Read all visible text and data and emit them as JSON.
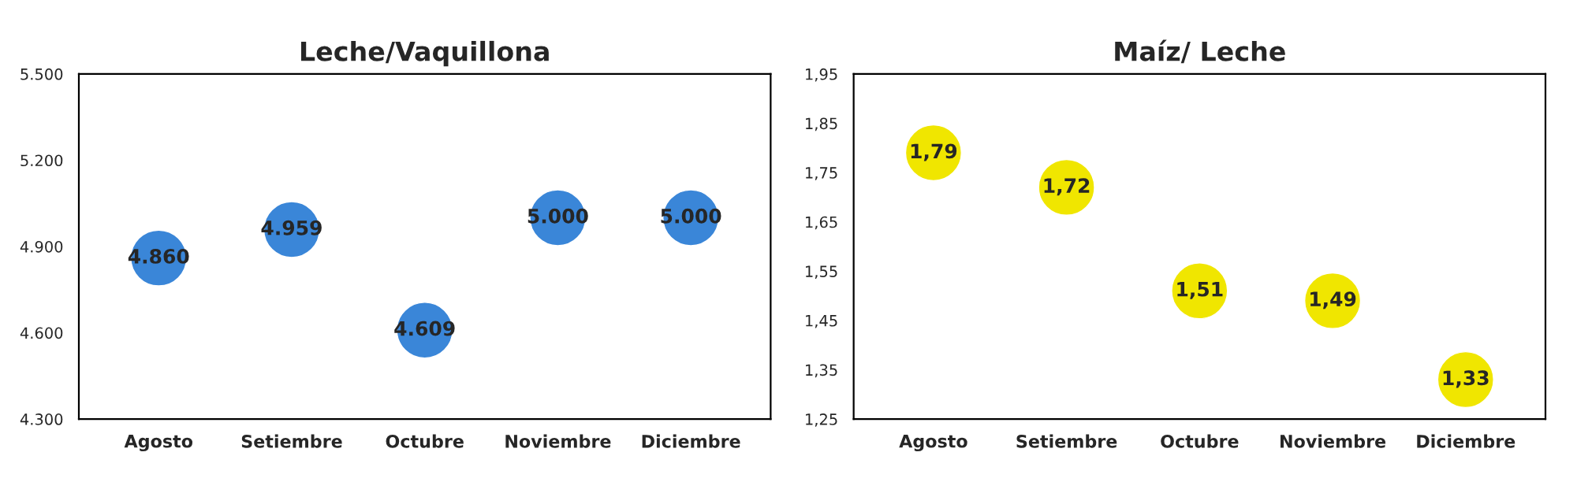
{
  "chart_data": [
    {
      "type": "scatter",
      "title": "Leche/Vaquillona",
      "categories": [
        "Agosto",
        "Setiembre",
        "Octubre",
        "Noviembre",
        "Diciembre"
      ],
      "series": [
        {
          "color": "#3a86d8",
          "values": [
            4860,
            4959,
            4609,
            5000,
            5000
          ],
          "value_labels": [
            "4.860",
            "4.959",
            "4.609",
            "5.000",
            "5.000"
          ]
        }
      ],
      "ylim": [
        4300,
        5500
      ],
      "yticks": [
        {
          "value": 4300,
          "label": "4.300"
        },
        {
          "value": 4600,
          "label": "4.600"
        },
        {
          "value": 4900,
          "label": "4.900"
        },
        {
          "value": 5200,
          "label": "5.200"
        },
        {
          "value": 5500,
          "label": "5.500"
        }
      ],
      "marker": "circle",
      "grid": false,
      "legend": false
    },
    {
      "type": "scatter",
      "title": "Maíz/ Leche",
      "categories": [
        "Agosto",
        "Setiembre",
        "Octubre",
        "Noviembre",
        "Diciembre"
      ],
      "series": [
        {
          "color": "#f0e600",
          "values": [
            1.79,
            1.72,
            1.51,
            1.49,
            1.33
          ],
          "value_labels": [
            "1,79",
            "1,72",
            "1,51",
            "1,49",
            "1,33"
          ]
        }
      ],
      "ylim": [
        1.25,
        1.95
      ],
      "yticks": [
        {
          "value": 1.25,
          "label": "1,25"
        },
        {
          "value": 1.35,
          "label": "1,35"
        },
        {
          "value": 1.45,
          "label": "1,45"
        },
        {
          "value": 1.55,
          "label": "1,55"
        },
        {
          "value": 1.65,
          "label": "1,65"
        },
        {
          "value": 1.75,
          "label": "1,75"
        },
        {
          "value": 1.85,
          "label": "1,85"
        },
        {
          "value": 1.95,
          "label": "1,95"
        }
      ],
      "marker": "circle",
      "grid": false,
      "legend": false
    }
  ]
}
